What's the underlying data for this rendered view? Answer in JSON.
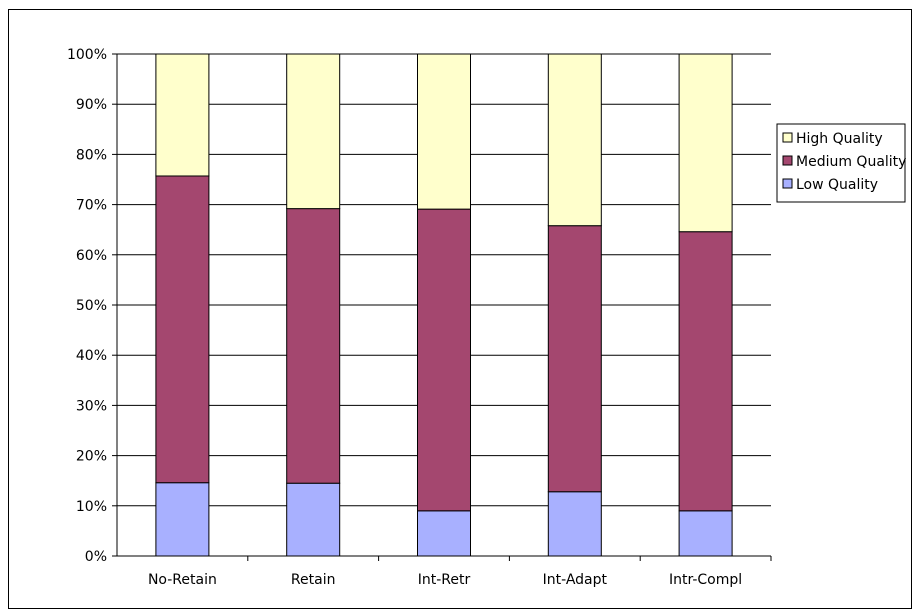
{
  "chart_data": {
    "type": "bar",
    "stacked": true,
    "percent_stacked": true,
    "categories": [
      "No-Retain",
      "Retain",
      "Int-Retr",
      "Int-Adapt",
      "Intr-Compl"
    ],
    "series": [
      {
        "name": "Low Quality",
        "values": [
          14.6,
          14.5,
          9.0,
          12.8,
          9.0
        ],
        "color": "#a8b0ff"
      },
      {
        "name": "Medium Quality",
        "values": [
          61.1,
          54.7,
          60.1,
          53.0,
          55.6
        ],
        "color": "#a4476f"
      },
      {
        "name": "High Quality",
        "values": [
          24.3,
          30.8,
          30.9,
          34.2,
          35.4
        ],
        "color": "#ffffcc"
      }
    ],
    "legend_order": [
      "High Quality",
      "Medium Quality",
      "Low Quality"
    ],
    "ylim": [
      0,
      100
    ],
    "yticks": [
      "0%",
      "10%",
      "20%",
      "30%",
      "40%",
      "50%",
      "60%",
      "70%",
      "80%",
      "90%",
      "100%"
    ],
    "grid": true,
    "legend_position": "right",
    "title": "",
    "xlabel": "",
    "ylabel": ""
  }
}
